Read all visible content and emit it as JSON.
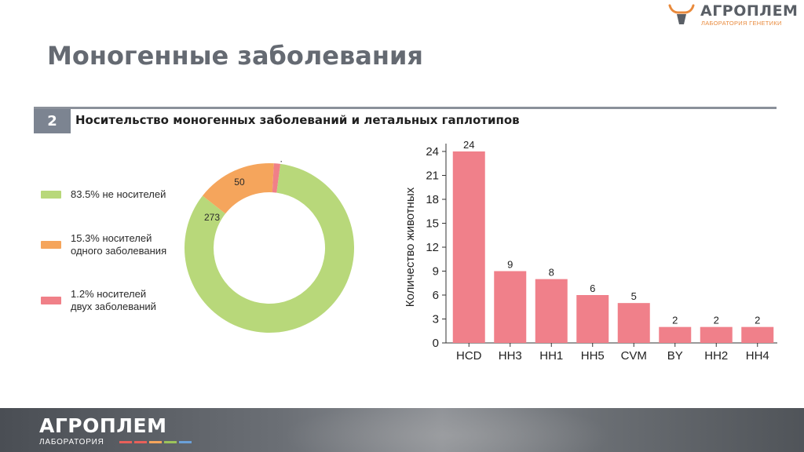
{
  "logo": {
    "brand": "АГРОПЛЕМ",
    "subtitle": "ЛАБОРАТОРИЯ ГЕНЕТИКИ"
  },
  "title": "Моногенные заболевания",
  "section": {
    "number": "2",
    "title": "Носительство моногенных заболеваний и летальных гаплотипов"
  },
  "colors": {
    "green": "#b8d87a",
    "orange": "#f5a55c",
    "pink": "#f08088",
    "bar": "#f0808a"
  },
  "legend": [
    {
      "line1": "83.5% не носителей",
      "line2": "",
      "color": "#b8d87a"
    },
    {
      "line1": "15.3% носителей",
      "line2": "одного заболевания",
      "color": "#f5a55c"
    },
    {
      "line1": "1.2% носителей",
      "line2": "двух заболеваний",
      "color": "#f08088"
    }
  ],
  "footer": {
    "brand": "АГРОПЛЕМ",
    "subtitle": "ЛАБОРАТОРИЯ",
    "stripe_colors": [
      "#e8605a",
      "#e8605a",
      "#f5a55c",
      "#9cc35a",
      "#6aa0d8"
    ]
  },
  "chart_data": [
    {
      "type": "pie",
      "labels": [
        "не носителей",
        "носителей одного заболевания",
        "носителей двух заболеваний"
      ],
      "values": [
        273,
        50,
        4
      ],
      "percents": [
        83.5,
        15.3,
        1.2
      ],
      "colors": [
        "#b8d87a",
        "#f5a55c",
        "#f08088"
      ]
    },
    {
      "type": "bar",
      "categories": [
        "HCD",
        "HH3",
        "HH1",
        "HH5",
        "CVM",
        "BY",
        "HH2",
        "HH4"
      ],
      "values": [
        24,
        9,
        8,
        6,
        5,
        2,
        2,
        2
      ],
      "ylabel": "Количество животных",
      "xlabel": "",
      "ylim": [
        0,
        24
      ],
      "yticks": [
        0,
        3,
        6,
        9,
        12,
        15,
        18,
        21,
        24
      ],
      "grid": false
    }
  ]
}
